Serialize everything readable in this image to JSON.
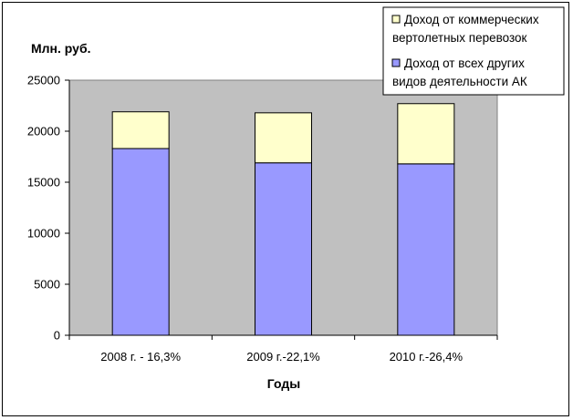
{
  "chart_data": {
    "type": "bar",
    "stacked": true,
    "ylabel": "Млн. руб.",
    "xlabel": "Годы",
    "categories": [
      "2008 г. - 16,3%",
      "2009 г.-22,1%",
      "2010 г.-26,4%"
    ],
    "series": [
      {
        "name_lines": [
          "Доход от всех других",
          "видов деятельности АК"
        ],
        "values": [
          18300,
          16900,
          16800
        ],
        "color": "#9999ff"
      },
      {
        "name_lines": [
          "Доход от коммерческих",
          "вертолетных перевозок"
        ],
        "values": [
          3600,
          4900,
          5900
        ],
        "color": "#ffffcc"
      }
    ],
    "ylim": [
      0,
      25000
    ],
    "yticks": [
      0,
      5000,
      10000,
      15000,
      20000,
      25000
    ],
    "grid": false,
    "legend_position": "top-right",
    "plot_background": "#c0c0c0"
  }
}
